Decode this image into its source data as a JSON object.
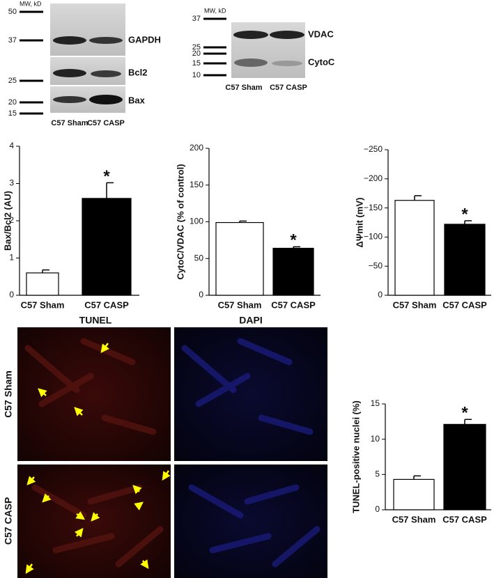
{
  "chart_data": [
    {
      "type": "bar",
      "y_label": "Bax/Bcl2 (AU)",
      "categories": [
        "C57 Sham",
        "C57 CASP"
      ],
      "values": [
        0.6,
        2.6
      ],
      "errors": [
        0.08,
        0.42
      ],
      "colors": [
        "#ffffff",
        "#000000"
      ],
      "ylim": [
        0,
        4
      ],
      "yticks": [
        0,
        1,
        2,
        3,
        4
      ],
      "annotation": "*",
      "grid": false
    },
    {
      "type": "bar",
      "y_label": "CytoC/VDAC (% of control)",
      "categories": [
        "C57 Sham",
        "C57 CASP"
      ],
      "values": [
        99,
        64
      ],
      "errors": [
        2,
        2
      ],
      "colors": [
        "#ffffff",
        "#000000"
      ],
      "ylim": [
        0,
        200
      ],
      "yticks": [
        0,
        50,
        100,
        150,
        200
      ],
      "annotation": "*",
      "grid": false
    },
    {
      "type": "bar",
      "y_label": "ΔΨmit (mV)",
      "categories": [
        "C57 Sham",
        "C57 CASP"
      ],
      "values": [
        -163,
        -122
      ],
      "errors": [
        8,
        6
      ],
      "colors": [
        "#ffffff",
        "#000000"
      ],
      "ylim": [
        0,
        -250
      ],
      "yticks": [
        0,
        {
          "value": -50,
          "label": "−50"
        },
        {
          "value": -100,
          "label": "−100"
        },
        {
          "value": -150,
          "label": "−150"
        },
        {
          "value": -200,
          "label": "−200"
        },
        {
          "value": -250,
          "label": "−250"
        }
      ],
      "annotation": "*",
      "grid": false
    },
    {
      "type": "bar",
      "y_label": "TUNEL-positive nuclei (%)",
      "categories": [
        "C57 Sham",
        "C57 CASP"
      ],
      "values": [
        4.3,
        12.1
      ],
      "errors": [
        0.5,
        0.7
      ],
      "colors": [
        "#ffffff",
        "#000000"
      ],
      "ylim": [
        0,
        15
      ],
      "yticks": [
        0,
        5,
        10,
        15
      ],
      "annotation": "*",
      "grid": false
    }
  ],
  "blots": [
    {
      "mw_label": "MW, kD",
      "markers": [
        50,
        37,
        25,
        20,
        15
      ],
      "bands": [
        "GAPDH",
        "Bcl2",
        "Bax"
      ],
      "lanes": [
        "C57 Sham",
        "C57 CASP"
      ]
    },
    {
      "mw_label": "MW, kD",
      "markers": [
        37,
        25,
        20,
        15,
        10
      ],
      "bands": [
        "VDAC",
        "CytoC"
      ],
      "lanes": [
        "C57 Sham",
        "C57 CASP"
      ]
    }
  ],
  "micrographs": {
    "columns": [
      "TUNEL",
      "DAPI"
    ],
    "rows": [
      "C57 Sham",
      "C57 CASP"
    ]
  }
}
